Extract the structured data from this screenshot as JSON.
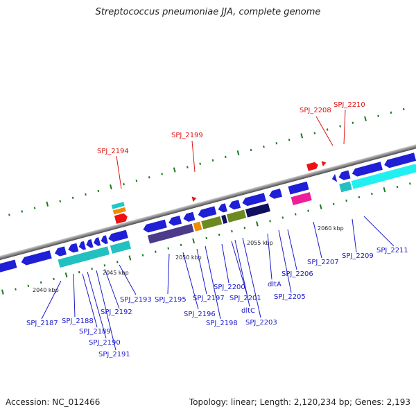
{
  "title": "Streptococcus pneumoniae JJA, complete genome",
  "accession": "Accession: NC_012466",
  "summary": "Topology: linear; Length: 2,120,234 bp; Genes: 2,193",
  "colors": {
    "backbone": "#8a8a8a",
    "cds_blue": "#1f1fd6",
    "label_blue": "#1a1acc",
    "label_red": "#e01010",
    "red_feature": "#ee1111",
    "tick_green": "#1a7a1a"
  },
  "scale_ticks": [
    "2040 kbp",
    "2045 kbp",
    "2050 kbp",
    "2055 kbp",
    "2060 kbp"
  ],
  "forward_labels": [
    "SPJ_2194",
    "SPJ_2199",
    "SPJ_2208",
    "SPJ_2210"
  ],
  "reverse_labels": [
    "SPJ_2187",
    "SPJ_2188",
    "SPJ_2189",
    "SPJ_2190",
    "SPJ_2191",
    "SPJ_2192",
    "SPJ_2193",
    "SPJ_2195",
    "SPJ_2196",
    "SPJ_2197",
    "SPJ_2198",
    "SPJ_2200",
    "SPJ_2201",
    "dltC",
    "SPJ_2203",
    "dltA",
    "SPJ_2205",
    "SPJ_2206",
    "SPJ_2207",
    "SPJ_2209",
    "SPJ_2211"
  ]
}
